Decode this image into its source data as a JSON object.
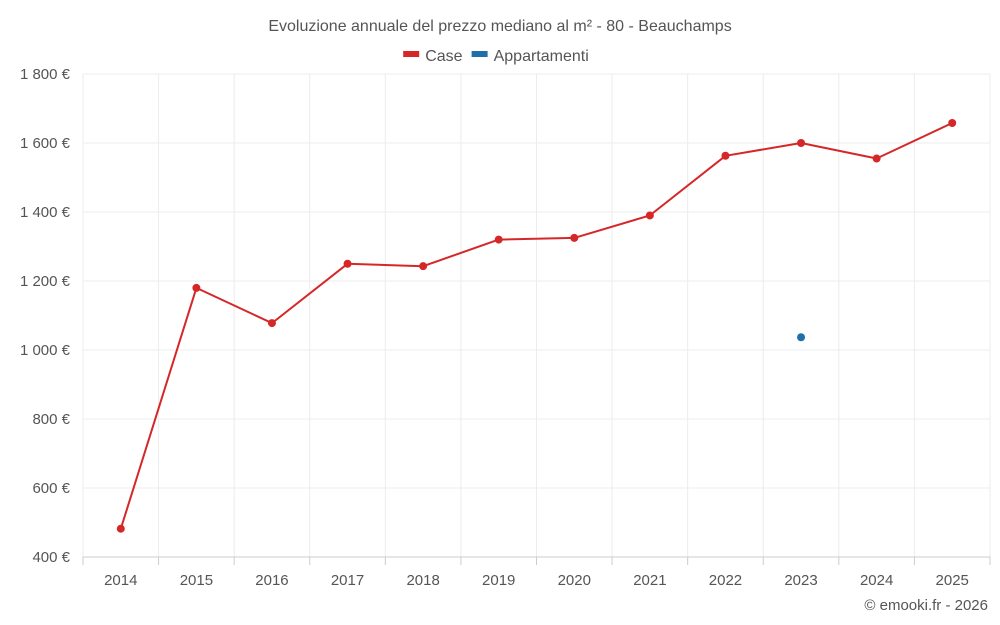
{
  "chart_data": {
    "type": "line",
    "title": "Evoluzione annuale del prezzo mediano al m² - 80 - Beauchamps",
    "categories": [
      "2014",
      "2015",
      "2016",
      "2017",
      "2018",
      "2019",
      "2020",
      "2021",
      "2022",
      "2023",
      "2024",
      "2025"
    ],
    "series": [
      {
        "name": "Case",
        "color": "#d62728",
        "values": [
          482,
          1180,
          1078,
          1250,
          1243,
          1320,
          1325,
          1390,
          1563,
          1600,
          1555,
          1658
        ]
      },
      {
        "name": "Appartamenti",
        "color": "#1f6fa8",
        "values": [
          null,
          null,
          null,
          null,
          null,
          null,
          null,
          null,
          null,
          1037,
          null,
          null
        ]
      }
    ],
    "ylim": [
      400,
      1800
    ],
    "yticks": [
      400,
      600,
      800,
      1000,
      1200,
      1400,
      1600,
      1800
    ],
    "ytick_labels": [
      "400 €",
      "600 €",
      "800 €",
      "1 000 €",
      "1 200 €",
      "1 400 €",
      "1 600 €",
      "1 800 €"
    ],
    "xlabel": "",
    "ylabel": "",
    "grid": true,
    "legend": "top-center"
  },
  "credit": "© emooki.fr - 2026"
}
